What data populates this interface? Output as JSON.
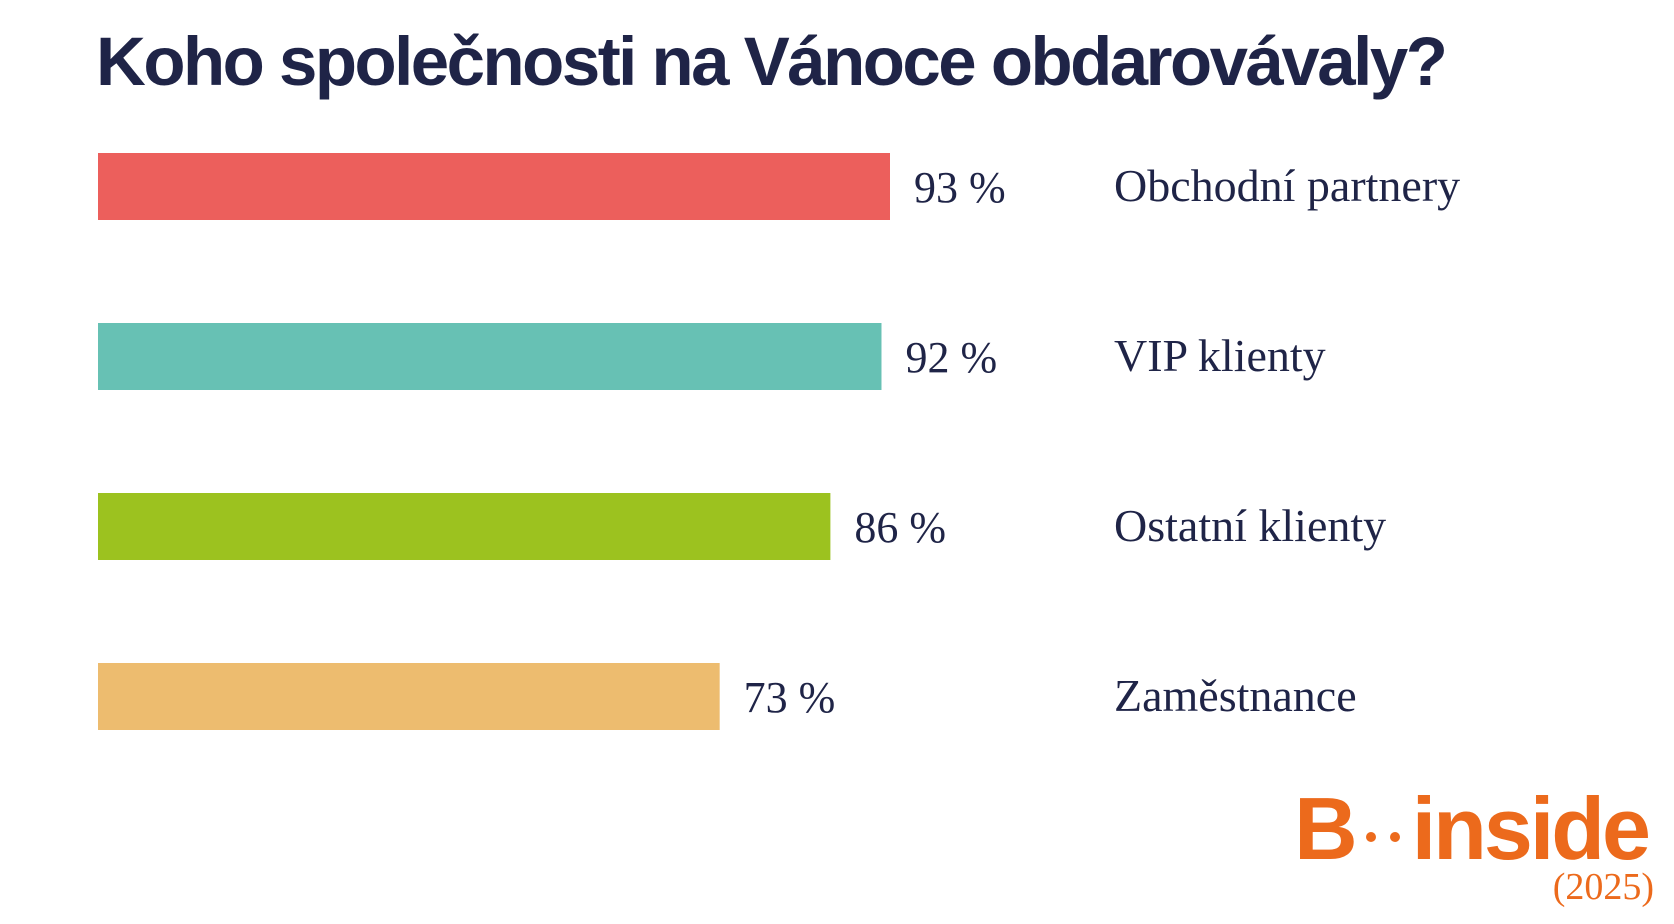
{
  "chart_data": {
    "type": "bar",
    "orientation": "horizontal",
    "title": "Koho společnosti na Vánoce obdarovávaly?",
    "categories": [
      "Obchodní partnery",
      "VIP klienty",
      "Ostatní klienty",
      "Zaměstnance"
    ],
    "values": [
      93,
      92,
      86,
      73
    ],
    "value_labels": [
      "93 %",
      "92 %",
      "86 %",
      "73 %"
    ],
    "colors": [
      "#ec5f5c",
      "#67c1b4",
      "#9cc21f",
      "#edbc6f"
    ],
    "grid": false,
    "legend": "none"
  },
  "branding": {
    "logo_letter": "B",
    "logo_word": "inside",
    "logo_color": "#ec6a1c",
    "year": "(2025)"
  }
}
